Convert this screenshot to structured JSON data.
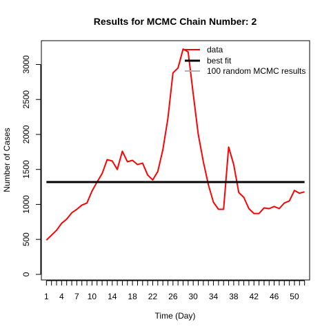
{
  "chart_data": {
    "type": "line",
    "title": "Results for MCMC Chain Number: 2",
    "xlabel": "Time (Day)",
    "ylabel": "Number of Cases",
    "xlim": [
      0,
      53
    ],
    "ylim": [
      -80,
      3340
    ],
    "x_ticks": [
      1,
      2,
      3,
      4,
      5,
      6,
      7,
      8,
      9,
      10,
      11,
      12,
      13,
      14,
      15,
      16,
      17,
      18,
      19,
      20,
      21,
      22,
      23,
      24,
      25,
      26,
      27,
      28,
      29,
      30,
      31,
      32,
      33,
      34,
      35,
      36,
      37,
      38,
      39,
      40,
      41,
      42,
      43,
      44,
      45,
      46,
      47,
      48,
      49,
      50,
      51,
      52
    ],
    "x_tick_labels": [
      {
        "x": 1,
        "label": "1"
      },
      {
        "x": 4,
        "label": "4"
      },
      {
        "x": 7,
        "label": "7"
      },
      {
        "x": 10,
        "label": "10"
      },
      {
        "x": 14,
        "label": "14"
      },
      {
        "x": 18,
        "label": "18"
      },
      {
        "x": 22,
        "label": "22"
      },
      {
        "x": 26,
        "label": "26"
      },
      {
        "x": 30,
        "label": "30"
      },
      {
        "x": 34,
        "label": "34"
      },
      {
        "x": 38,
        "label": "38"
      },
      {
        "x": 42,
        "label": "42"
      },
      {
        "x": 46,
        "label": "46"
      },
      {
        "x": 50,
        "label": "50"
      }
    ],
    "y_ticks": [
      0,
      500,
      1000,
      1500,
      2000,
      2500,
      3000
    ],
    "y_tick_labels": [
      "0",
      "500",
      "1000",
      "1500",
      "2000",
      "2500",
      "3000"
    ],
    "legend_position": "top-right",
    "legend": [
      {
        "label": "data",
        "color": "#ff0000"
      },
      {
        "label": "best fit",
        "color": "#000000"
      },
      {
        "label": "100 random MCMC results",
        "color": "#b0b0b0"
      }
    ],
    "series": [
      {
        "name": "data",
        "color": "#ff0000",
        "x": [
          1,
          2,
          3,
          4,
          5,
          6,
          7,
          8,
          9,
          10,
          11,
          12,
          13,
          14,
          15,
          16,
          17,
          18,
          19,
          20,
          21,
          22,
          23,
          24,
          25,
          26,
          27,
          28,
          29,
          30,
          31,
          32,
          33,
          34,
          35,
          36,
          37,
          38,
          39,
          40,
          41,
          42,
          43,
          44,
          45,
          46,
          47,
          48,
          49,
          50,
          51,
          52
        ],
        "values": [
          490,
          560,
          630,
          730,
          790,
          880,
          930,
          990,
          1020,
          1190,
          1320,
          1440,
          1640,
          1620,
          1500,
          1760,
          1610,
          1630,
          1570,
          1590,
          1420,
          1350,
          1470,
          1780,
          2230,
          2880,
          2950,
          3220,
          3180,
          2580,
          2000,
          1610,
          1280,
          1030,
          930,
          930,
          1820,
          1570,
          1170,
          1100,
          940,
          870,
          870,
          950,
          940,
          970,
          940,
          1020,
          1050,
          1200,
          1160,
          1180
        ]
      },
      {
        "name": "best fit",
        "color": "#000000",
        "x": [
          1,
          52
        ],
        "values": [
          1320,
          1320
        ]
      }
    ]
  }
}
